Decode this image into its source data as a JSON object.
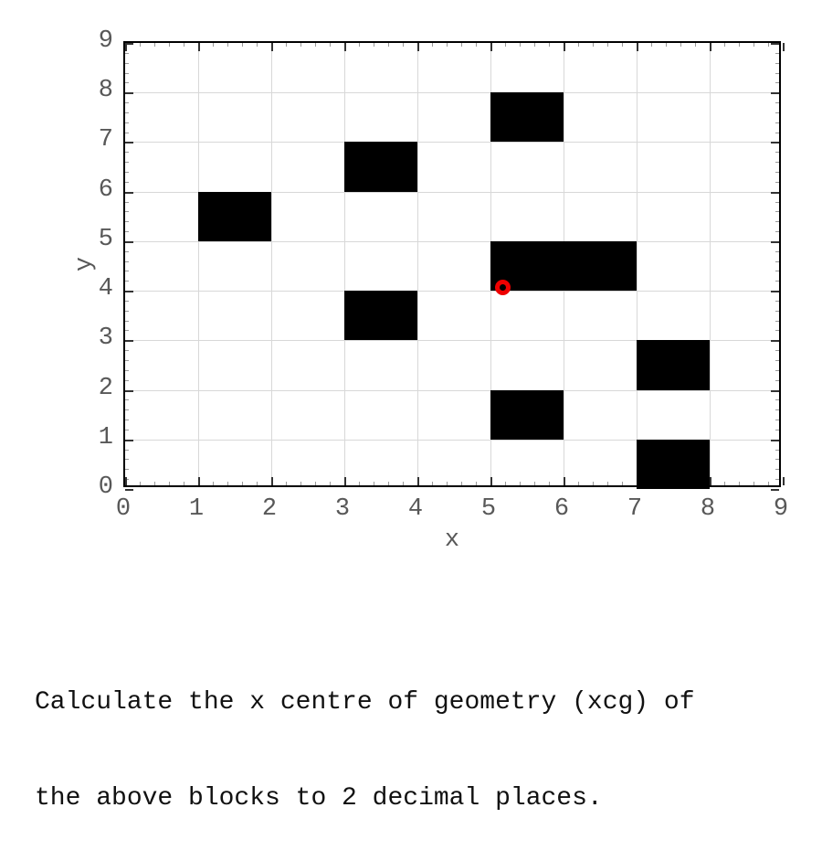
{
  "chart_data": {
    "type": "heatmap",
    "subtype": "unit-blocks-on-grid",
    "title": "",
    "xlabel": "x",
    "ylabel": "y",
    "xlim": [
      0,
      9
    ],
    "ylim": [
      0,
      9
    ],
    "grid": true,
    "major_tick_step": 1,
    "minor_tick_step": 0.2,
    "xticklabels": [
      "0",
      "1",
      "2",
      "3",
      "4",
      "5",
      "6",
      "7",
      "8",
      "9"
    ],
    "yticklabels": [
      "0",
      "1",
      "2",
      "3",
      "4",
      "5",
      "6",
      "7",
      "8",
      "9"
    ],
    "blocks": [
      {
        "x0": 1,
        "y0": 5,
        "x1": 2,
        "y1": 6
      },
      {
        "x0": 3,
        "y0": 6,
        "x1": 4,
        "y1": 7
      },
      {
        "x0": 5,
        "y0": 7,
        "x1": 6,
        "y1": 8
      },
      {
        "x0": 5,
        "y0": 4,
        "x1": 7,
        "y1": 5
      },
      {
        "x0": 3,
        "y0": 3,
        "x1": 4,
        "y1": 4
      },
      {
        "x0": 7,
        "y0": 2,
        "x1": 8,
        "y1": 3
      },
      {
        "x0": 5,
        "y0": 1,
        "x1": 6,
        "y1": 2
      },
      {
        "x0": 7,
        "y0": 0,
        "x1": 8,
        "y1": 1
      }
    ],
    "centroid_marker": {
      "x": 5.17,
      "y": 4.06,
      "shape": "open-circle"
    },
    "colors": {
      "block": "#000000",
      "marker": "#ee0000",
      "grid": "#d8d8d8",
      "spine": "#000000",
      "major_tick": "#333333",
      "minor_tick": "#999999",
      "tick_label": "#585858"
    }
  },
  "question": {
    "lines": [
      "Calculate the x centre of geometry (xcg) of",
      "the above blocks to 2 decimal places."
    ]
  }
}
